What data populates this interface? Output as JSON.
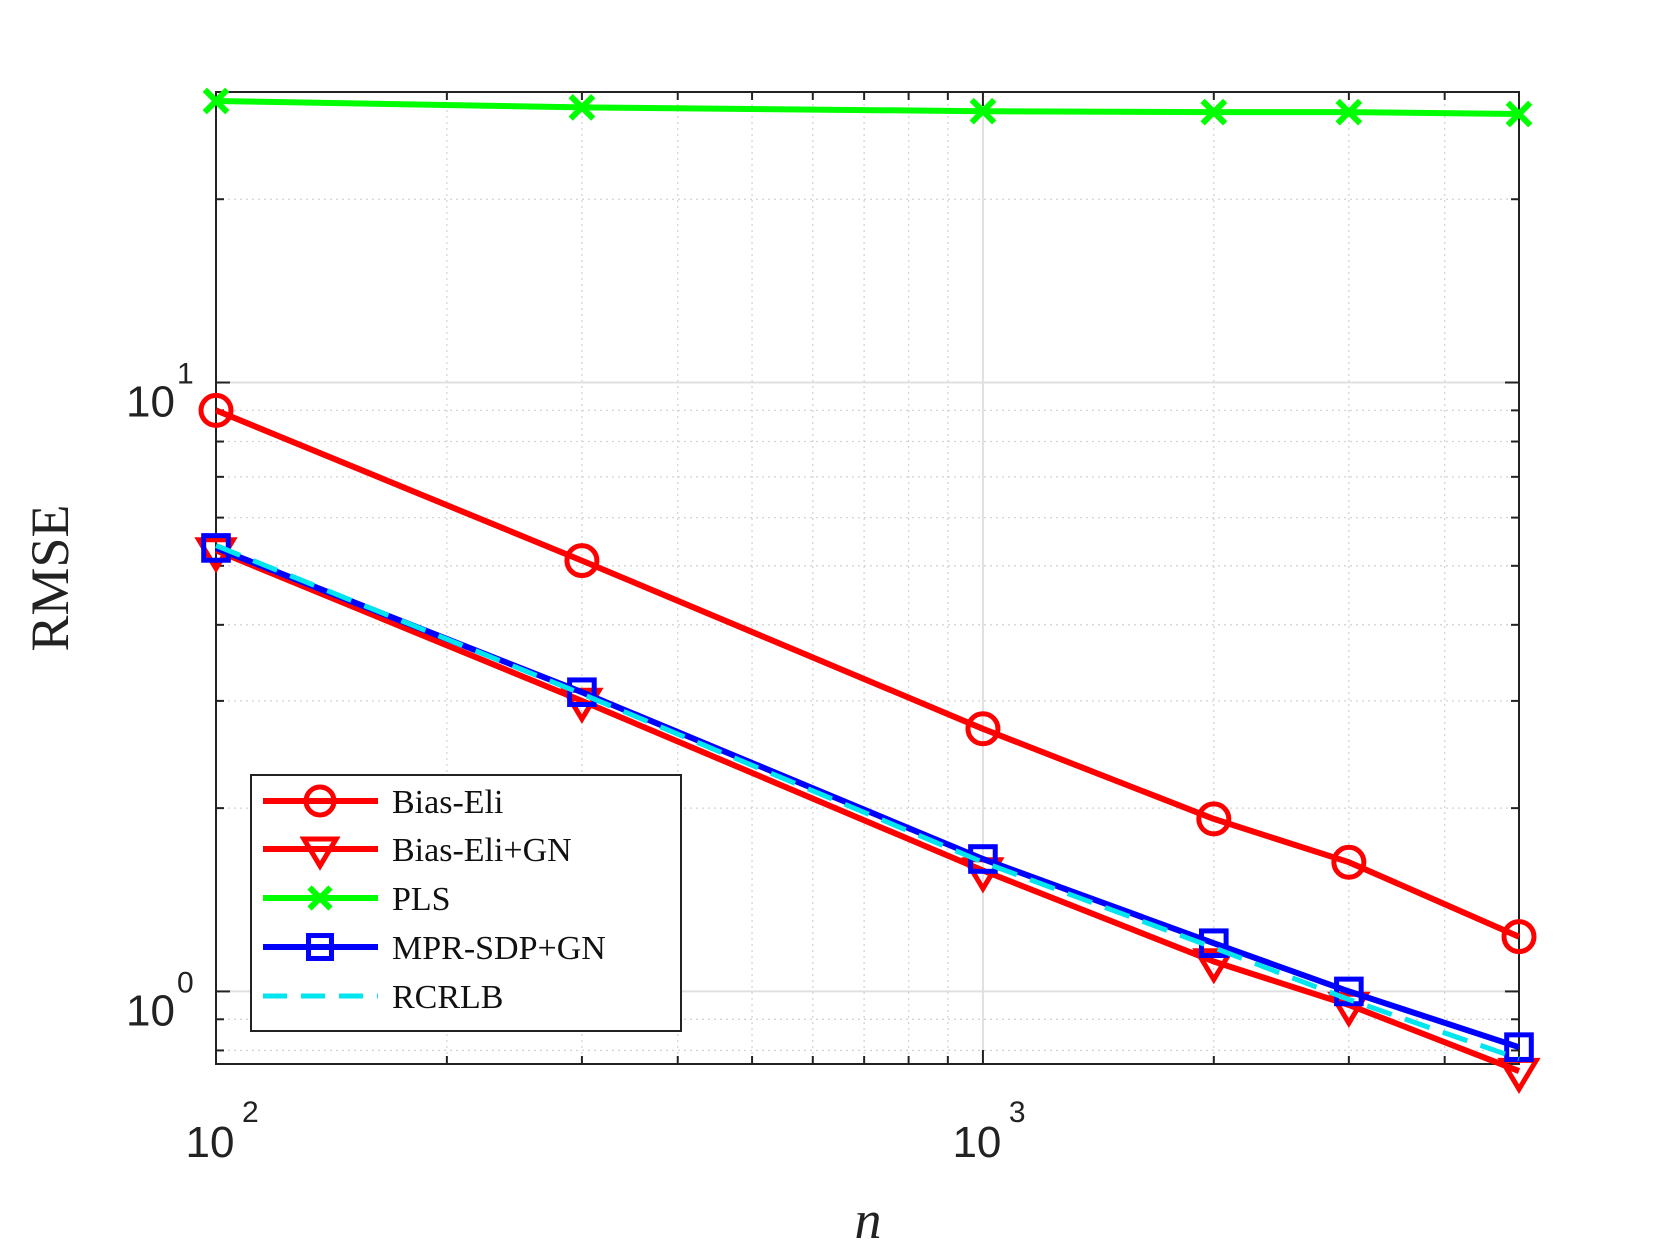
{
  "chart_data": {
    "type": "line",
    "xlabel": "n",
    "ylabel": "RMSE",
    "x_scale": "log",
    "y_scale": "log",
    "xlim": [
      100,
      5000
    ],
    "ylim": [
      0.76,
      30
    ],
    "grid": true,
    "minor_grid": true,
    "legend_position": "bottom-left",
    "x_ticks": [
      {
        "value": 100,
        "base": "10",
        "exp": "2"
      },
      {
        "value": 1000,
        "base": "10",
        "exp": "3"
      }
    ],
    "y_ticks": [
      {
        "value": 1,
        "base": "10",
        "exp": "0"
      },
      {
        "value": 10,
        "base": "10",
        "exp": "1"
      }
    ],
    "x": [
      100,
      300,
      1000,
      2000,
      3000,
      5000
    ],
    "series": [
      {
        "name": "Bias-Eli",
        "color": "#ff0000",
        "marker": "circle",
        "dash": "solid",
        "values": [
          9.0,
          5.1,
          2.7,
          1.92,
          1.63,
          1.23
        ]
      },
      {
        "name": "Bias-Eli+GN",
        "color": "#ff0000",
        "marker": "triangle-down",
        "dash": "solid",
        "values": [
          5.3,
          3.0,
          1.58,
          1.12,
          0.95,
          0.74
        ]
      },
      {
        "name": "PLS",
        "color": "#00ff00",
        "marker": "x",
        "dash": "solid",
        "values": [
          29.0,
          28.3,
          27.9,
          27.8,
          27.8,
          27.6
        ]
      },
      {
        "name": "MPR-SDP+GN",
        "color": "#0000ff",
        "marker": "square",
        "dash": "solid",
        "values": [
          5.35,
          3.1,
          1.65,
          1.2,
          1.0,
          0.81
        ]
      },
      {
        "name": "RCRLB",
        "color": "#00e5ee",
        "marker": "none",
        "dash": "dashed",
        "values": [
          5.4,
          3.08,
          1.63,
          1.18,
          0.97,
          0.775
        ]
      }
    ]
  }
}
